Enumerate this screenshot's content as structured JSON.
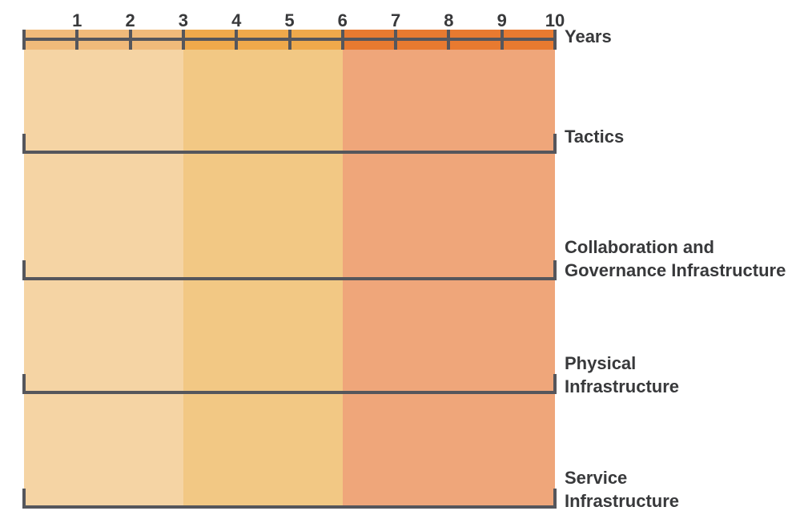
{
  "colors": {
    "background": "#ffffff",
    "line": "#55565c",
    "text": "#38393b"
  },
  "timeline": {
    "axis_label": "Years",
    "year_start": 0,
    "year_end": 10,
    "tick_labels": [
      "1",
      "2",
      "3",
      "4",
      "5",
      "6",
      "7",
      "8",
      "9",
      "10"
    ],
    "periods": [
      {
        "from": 0,
        "to": 3,
        "ruler_color": "#f0ba7a",
        "body_color": "#f5d4a4"
      },
      {
        "from": 3,
        "to": 6,
        "ruler_color": "#efa94b",
        "body_color": "#f2c884"
      },
      {
        "from": 6,
        "to": 10,
        "ruler_color": "#e87a30",
        "body_color": "#efa67a"
      }
    ]
  },
  "rows": [
    {
      "label": "Tactics"
    },
    {
      "label": "Collaboration and\nGovernance Infrastructure"
    },
    {
      "label": "Physical\nInfrastructure"
    },
    {
      "label": "Service\nInfrastructure"
    }
  ],
  "chart_data": {
    "type": "timeline",
    "title": "",
    "xlabel": "Years",
    "x_ticks": [
      1,
      2,
      3,
      4,
      5,
      6,
      7,
      8,
      9,
      10
    ],
    "x_range": [
      0,
      10
    ],
    "categories": [
      "Tactics",
      "Collaboration and Governance Infrastructure",
      "Physical Infrastructure",
      "Service Infrastructure"
    ],
    "time_bands": [
      {
        "from_year": 0,
        "to_year": 3,
        "color": "#f5d4a4"
      },
      {
        "from_year": 3,
        "to_year": 6,
        "color": "#f2c884"
      },
      {
        "from_year": 6,
        "to_year": 10,
        "color": "#efa67a"
      }
    ],
    "grid": false,
    "legend": "none"
  }
}
